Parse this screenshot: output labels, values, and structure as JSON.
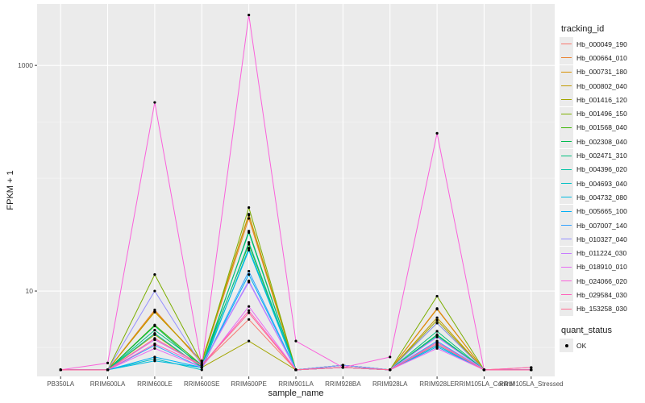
{
  "chart_data": {
    "type": "line",
    "xlabel": "sample_name",
    "ylabel": "FPKM + 1",
    "y_scale": "log10",
    "ylim": [
      1.75,
      3500
    ],
    "y_ticks": [
      {
        "value": 10,
        "label": "10"
      },
      {
        "value": 1000,
        "label": "1000"
      }
    ],
    "grid": true,
    "categories": [
      "PB350LA",
      "RRIM600LA",
      "RRIM600LE",
      "RRIM600SE",
      "RRIM600PE",
      "RRIM901LA",
      "RRIM928BA",
      "RRIM928LA",
      "RRIM928LE",
      "RRIM105LA_Control",
      "RRIM105LA_Stressed"
    ],
    "legend": {
      "title": "tracking_id",
      "placement": "right"
    },
    "legend2": {
      "title": "quant_status",
      "items": [
        "OK"
      ]
    },
    "series": [
      {
        "name": "Hb_000049_190",
        "color": "#F8766D",
        "values": [
          2,
          2,
          3.7,
          2.2,
          5.6,
          2,
          2.2,
          2,
          3.3,
          2,
          2
        ]
      },
      {
        "name": "Hb_000664_010",
        "color": "#EA8331",
        "values": [
          2,
          2,
          6.8,
          2.3,
          44,
          2,
          2.1,
          2,
          7,
          2,
          2.1
        ]
      },
      {
        "name": "Hb_000731_180",
        "color": "#D89000",
        "values": [
          2,
          2,
          6.6,
          2.4,
          48,
          2,
          2.2,
          2,
          6.9,
          2,
          2
        ]
      },
      {
        "name": "Hb_000802_040",
        "color": "#C09B00",
        "values": [
          2,
          2,
          6.5,
          2.4,
          47,
          2,
          2.1,
          2,
          5.8,
          2,
          2
        ]
      },
      {
        "name": "Hb_001416_120",
        "color": "#A3A500",
        "values": [
          2,
          2,
          4.1,
          2.1,
          3.6,
          2,
          2.2,
          2,
          5.5,
          2,
          2
        ]
      },
      {
        "name": "Hb_001496_150",
        "color": "#7CAE00",
        "values": [
          2,
          2,
          14,
          2.3,
          55,
          2,
          2.1,
          2,
          9,
          2,
          2
        ]
      },
      {
        "name": "Hb_001568_040",
        "color": "#39B600",
        "values": [
          2,
          2,
          5,
          2.2,
          26,
          2,
          2.1,
          2,
          5.2,
          2,
          2
        ]
      },
      {
        "name": "Hb_002308_040",
        "color": "#00BB4E",
        "values": [
          2,
          2,
          4.9,
          2.1,
          34,
          2,
          2.1,
          2,
          4.1,
          2,
          2
        ]
      },
      {
        "name": "Hb_002471_310",
        "color": "#00BF7D",
        "values": [
          2,
          2,
          4.5,
          2.2,
          33,
          2,
          2.2,
          2,
          4.4,
          2,
          2
        ]
      },
      {
        "name": "Hb_004396_020",
        "color": "#00C1A3",
        "values": [
          2,
          2,
          4.2,
          2.1,
          27,
          2,
          2.1,
          2,
          4,
          2,
          2
        ]
      },
      {
        "name": "Hb_004693_040",
        "color": "#00BFC4",
        "values": [
          2,
          2,
          2.5,
          2,
          24,
          2,
          2.1,
          2,
          3.5,
          2,
          2
        ]
      },
      {
        "name": "Hb_004732_080",
        "color": "#00BAE0",
        "values": [
          2,
          2,
          2.4,
          2.1,
          23,
          2,
          2.1,
          2,
          3.3,
          2,
          2
        ]
      },
      {
        "name": "Hb_005665_100",
        "color": "#00B0F6",
        "values": [
          2,
          2,
          2.6,
          2.1,
          14,
          2,
          2.2,
          2,
          3.2,
          2,
          2
        ]
      },
      {
        "name": "Hb_007007_140",
        "color": "#35A2FF",
        "values": [
          2,
          2,
          3.3,
          2.1,
          15,
          2,
          2.1,
          2,
          3.6,
          2,
          2
        ]
      },
      {
        "name": "Hb_010327_040",
        "color": "#9590FF",
        "values": [
          2,
          2,
          10,
          2.2,
          12.3,
          2,
          2.2,
          2,
          5.2,
          2,
          2
        ]
      },
      {
        "name": "Hb_011224_030",
        "color": "#C77CFF",
        "values": [
          2,
          2,
          3.7,
          2.2,
          12,
          2,
          2.1,
          2,
          3.9,
          2,
          2
        ]
      },
      {
        "name": "Hb_018910_010",
        "color": "#E76BF3",
        "values": [
          2,
          2,
          3.1,
          2.1,
          7.3,
          2,
          2.1,
          2,
          3.1,
          2,
          2
        ]
      },
      {
        "name": "Hb_024066_020",
        "color": "#FA62DB",
        "values": [
          2,
          2.3,
          470,
          2.2,
          2800,
          3.6,
          2.1,
          2.6,
          250,
          2,
          2
        ]
      },
      {
        "name": "Hb_029584_030",
        "color": "#FF62BC",
        "values": [
          2,
          2,
          3.4,
          2.2,
          6.7,
          2,
          2.1,
          2,
          3.5,
          2,
          2.1
        ]
      },
      {
        "name": "Hb_153258_030",
        "color": "#FF6C91",
        "values": [
          2,
          2,
          3.8,
          2.2,
          6.4,
          2,
          2.1,
          2,
          3.4,
          2,
          2
        ]
      }
    ]
  }
}
